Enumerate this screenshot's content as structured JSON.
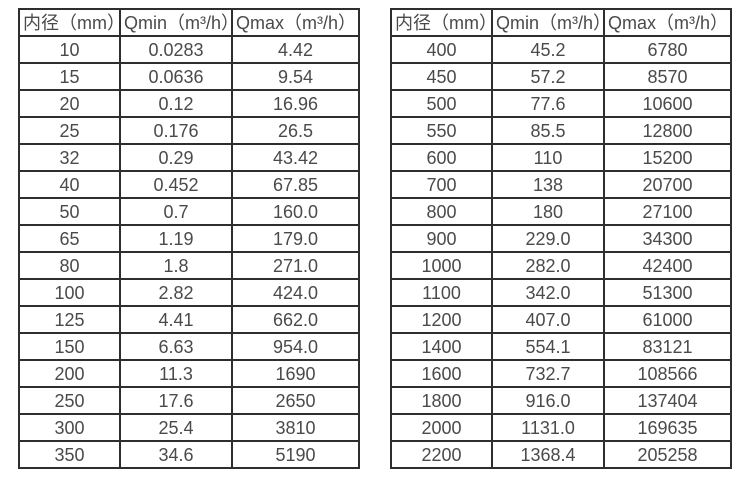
{
  "page": {
    "background": "#ffffff"
  },
  "colors": {
    "table_border": "#2e2e2e",
    "table_text": "#4a4a4a"
  },
  "tables": [
    {
      "name": "flow-spec-small-diameters",
      "headers": [
        "内径（mm）",
        "Qmin（m³/h）",
        "Qmax（m³/h）"
      ],
      "rows": [
        [
          "10",
          "0.0283",
          "4.42"
        ],
        [
          "15",
          "0.0636",
          "9.54"
        ],
        [
          "20",
          "0.12",
          "16.96"
        ],
        [
          "25",
          "0.176",
          "26.5"
        ],
        [
          "32",
          "0.29",
          "43.42"
        ],
        [
          "40",
          "0.452",
          "67.85"
        ],
        [
          "50",
          "0.7",
          "160.0"
        ],
        [
          "65",
          "1.19",
          "179.0"
        ],
        [
          "80",
          "1.8",
          "271.0"
        ],
        [
          "100",
          "2.82",
          "424.0"
        ],
        [
          "125",
          "4.41",
          "662.0"
        ],
        [
          "150",
          "6.63",
          "954.0"
        ],
        [
          "200",
          "11.3",
          "1690"
        ],
        [
          "250",
          "17.6",
          "2650"
        ],
        [
          "300",
          "25.4",
          "3810"
        ],
        [
          "350",
          "34.6",
          "5190"
        ]
      ]
    },
    {
      "name": "flow-spec-large-diameters",
      "headers": [
        "内径（mm）",
        "Qmin（m³/h）",
        "Qmax（m³/h）"
      ],
      "rows": [
        [
          "400",
          "45.2",
          "6780"
        ],
        [
          "450",
          "57.2",
          "8570"
        ],
        [
          "500",
          "77.6",
          "10600"
        ],
        [
          "550",
          "85.5",
          "12800"
        ],
        [
          "600",
          "110",
          "15200"
        ],
        [
          "700",
          "138",
          "20700"
        ],
        [
          "800",
          "180",
          "27100"
        ],
        [
          "900",
          "229.0",
          "34300"
        ],
        [
          "1000",
          "282.0",
          "42400"
        ],
        [
          "1100",
          "342.0",
          "51300"
        ],
        [
          "1200",
          "407.0",
          "61000"
        ],
        [
          "1400",
          "554.1",
          "83121"
        ],
        [
          "1600",
          "732.7",
          "108566"
        ],
        [
          "1800",
          "916.0",
          "137404"
        ],
        [
          "2000",
          "1131.0",
          "169635"
        ],
        [
          "2200",
          "1368.4",
          "205258"
        ]
      ]
    }
  ]
}
